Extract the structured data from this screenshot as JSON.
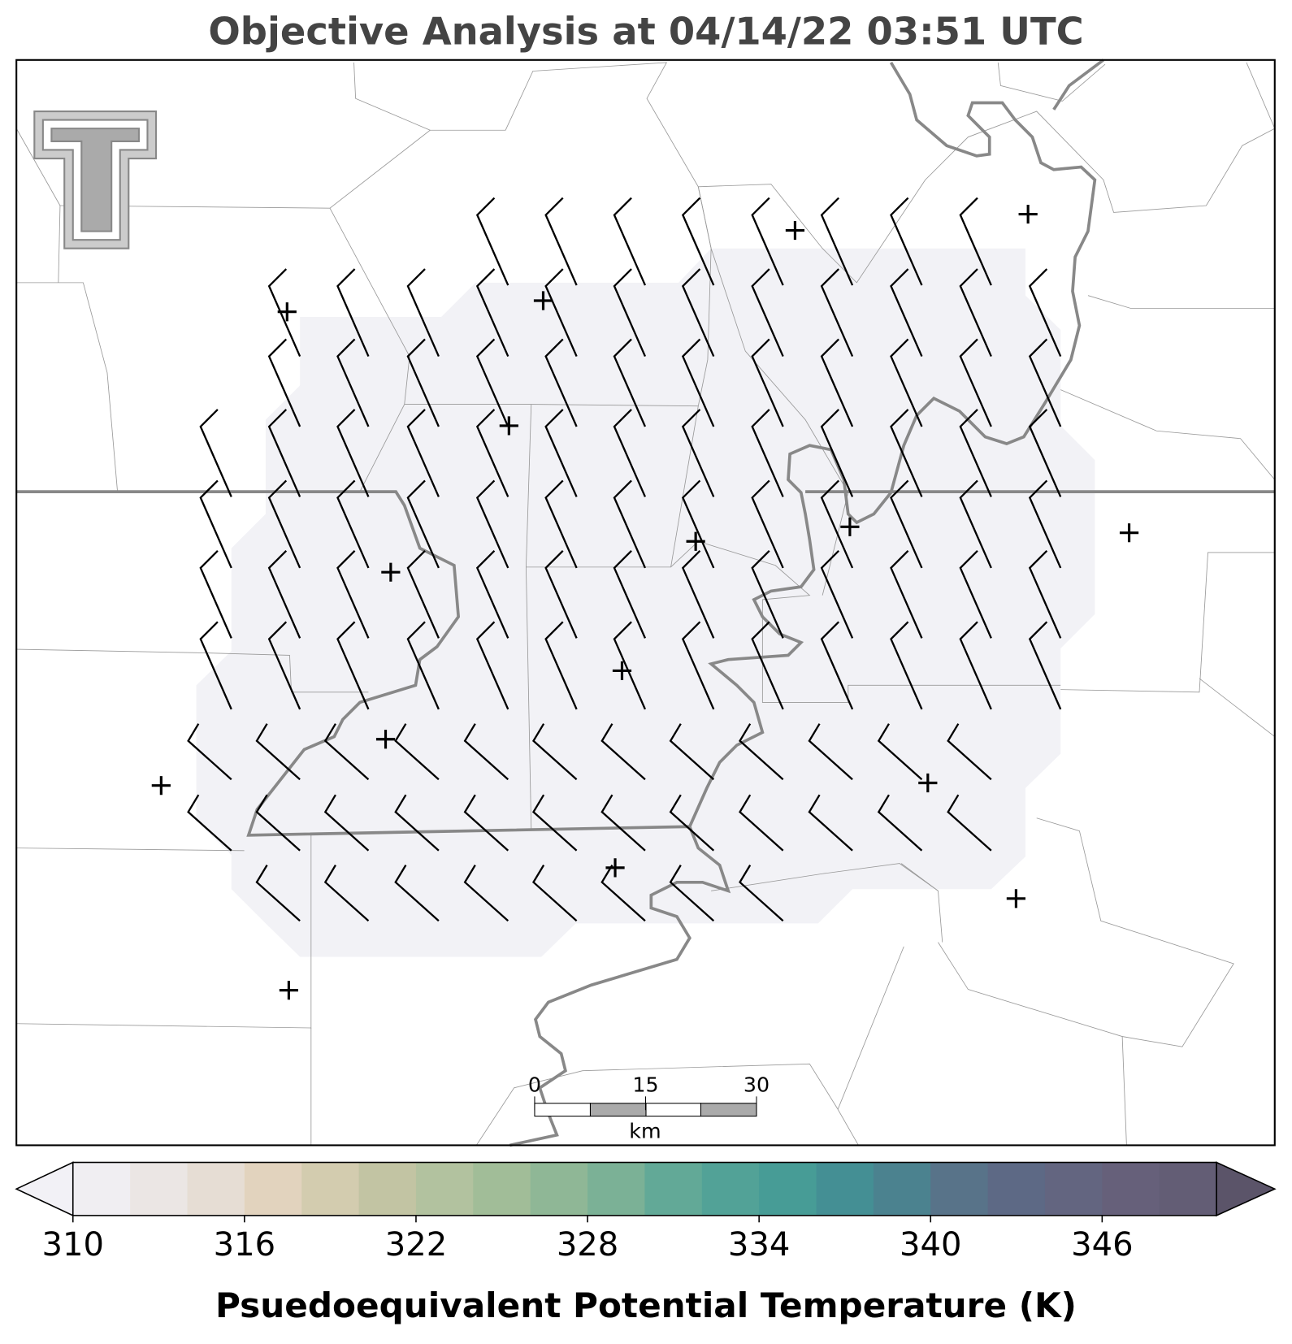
{
  "title": "Objective Analysis at 04/14/22 03:51 UTC",
  "scale_bar": {
    "ticks": [
      0,
      15,
      30
    ],
    "unit": "km"
  },
  "colorbar": {
    "label": "Psuedoequivalent Potential Temperature (K)",
    "range": [
      310,
      350
    ],
    "ticks": [
      310,
      316,
      322,
      328,
      334,
      340,
      346
    ],
    "colors": [
      "#f0eef2",
      "#ebe6e4",
      "#e6ddd4",
      "#e2d3be",
      "#d3ccaf",
      "#c2c4a3",
      "#b2c29f",
      "#a1bd98",
      "#8fb796",
      "#7bb196",
      "#62a997",
      "#52a297",
      "#479c96",
      "#448f94",
      "#4b828f",
      "#587389",
      "#5d6985",
      "#636580",
      "#66607a",
      "#635d75"
    ],
    "extend_colors": [
      "#f2f1f6",
      "#5b5469"
    ]
  }
}
